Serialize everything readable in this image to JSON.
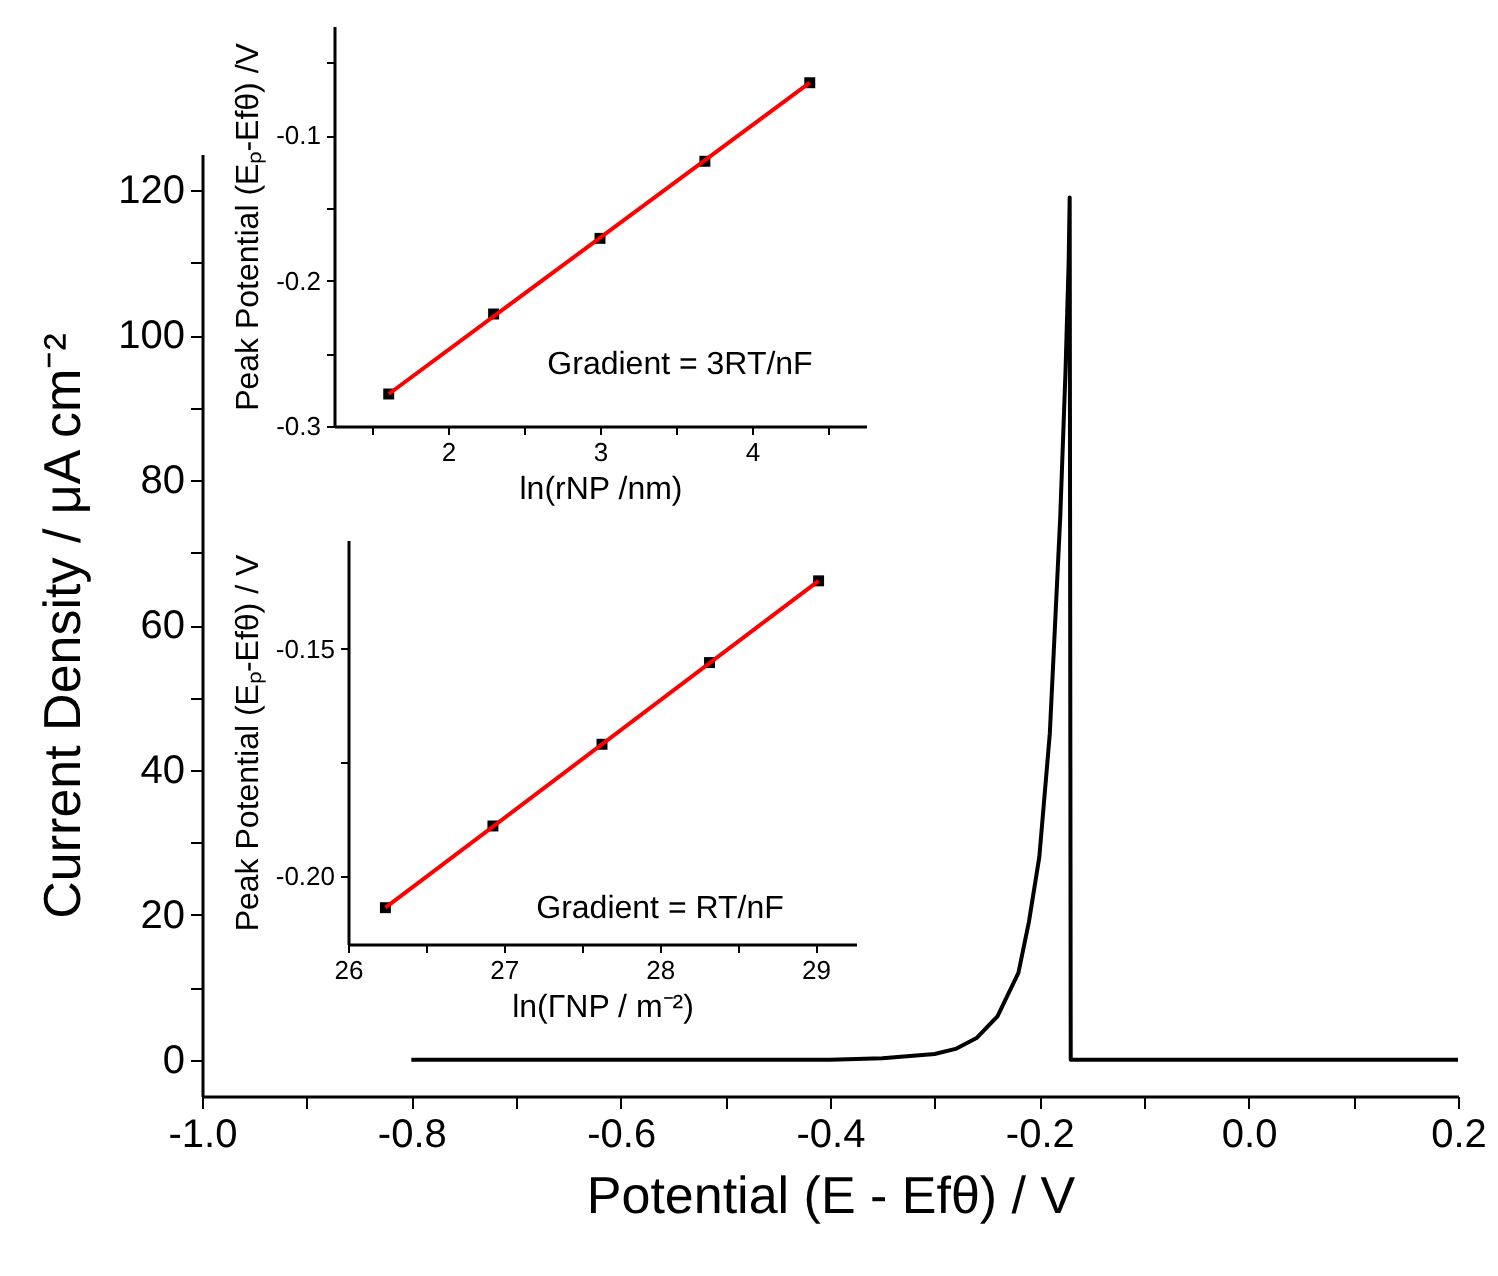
{
  "chart_data": [
    {
      "type": "line",
      "xlabel": "Potential (E - Efθ) / V",
      "ylabel": "Current Density / μA cm⁻²",
      "grid": false,
      "marker": "none",
      "xlim": [
        -1.0,
        0.2
      ],
      "ylim": [
        -5,
        125
      ],
      "xticks": [
        {
          "value": -1.0,
          "label": "-1.0"
        },
        {
          "value": -0.9,
          "label": null
        },
        {
          "value": -0.8,
          "label": "-0.8"
        },
        {
          "value": -0.7,
          "label": null
        },
        {
          "value": -0.6,
          "label": "-0.6"
        },
        {
          "value": -0.5,
          "label": null
        },
        {
          "value": -0.4,
          "label": "-0.4"
        },
        {
          "value": -0.3,
          "label": null
        },
        -0.2,
        {
          "value": -0.1,
          "label": null
        },
        {
          "value": 0,
          "label": "0.0"
        },
        {
          "value": 0.1,
          "label": null
        },
        0.2
      ],
      "yticks": [
        0,
        {
          "value": 10,
          "label": null
        },
        20,
        {
          "value": 30,
          "label": null
        },
        40,
        {
          "value": 50,
          "label": null
        },
        60,
        {
          "value": 70,
          "label": null
        },
        80,
        {
          "value": 90,
          "label": null
        },
        100,
        {
          "value": 110,
          "label": null
        },
        120
      ],
      "series": [
        {
          "color": "#000000",
          "x": [
            -0.8,
            -0.6,
            -0.4,
            -0.35,
            -0.3,
            -0.28,
            -0.26,
            -0.24,
            -0.22,
            -0.21,
            -0.2,
            -0.19,
            -0.18,
            -0.175,
            -0.172,
            -0.171,
            -0.17,
            0.2
          ],
          "values": [
            0,
            0,
            0,
            0.2,
            0.8,
            1.5,
            3,
            6,
            12,
            19,
            28,
            45,
            75,
            95,
            110,
            119,
            0,
            0
          ]
        }
      ]
    },
    {
      "type": "scatter",
      "xlabel": "ln(rNP /nm)",
      "ylabel": "Peak Potential (Eₚ-Efθ) /V",
      "grid": false,
      "annotations": [
        "Gradient = 3RT/nF"
      ],
      "xlim": [
        1.25,
        4.75
      ],
      "ylim": [
        -0.3,
        -0.025
      ],
      "xticks": [
        {
          "value": 1.5,
          "label": null
        },
        2,
        {
          "value": 2.5,
          "label": null
        },
        3,
        {
          "value": 3.5,
          "label": null
        },
        4,
        {
          "value": 4.5,
          "label": null
        }
      ],
      "yticks": [
        -0.3,
        {
          "value": -0.25,
          "label": null
        },
        -0.2,
        {
          "value": -0.15,
          "label": null
        },
        -0.1,
        {
          "value": -0.05,
          "label": null
        }
      ],
      "series": [
        {
          "type": "scatter",
          "marker": "square",
          "color": "#000000",
          "x": [
            1.61,
            2.3,
            3.0,
            3.69,
            4.38
          ],
          "values": [
            -0.278,
            -0.223,
            -0.171,
            -0.118,
            -0.064
          ]
        },
        {
          "type": "line",
          "color": "#ff0000",
          "x": [
            1.61,
            4.38
          ],
          "values": [
            -0.278,
            -0.064
          ]
        }
      ]
    },
    {
      "type": "scatter",
      "xlabel": "ln(ΓNP / m⁻²)",
      "ylabel": "Peak Potential (Eₚ-Efθ) / V",
      "grid": false,
      "annotations": [
        "Gradient = RT/nF"
      ],
      "xlim": [
        26,
        29.26
      ],
      "ylim": [
        -0.215,
        -0.126
      ],
      "xticks": [
        26,
        {
          "value": 26.5,
          "label": null
        },
        27,
        {
          "value": 27.5,
          "label": null
        },
        28,
        {
          "value": 28.5,
          "label": null
        },
        29
      ],
      "yticks": [
        {
          "value": -0.2,
          "label": "-0.20"
        },
        {
          "value": -0.175,
          "label": null
        },
        -0.15
      ],
      "series": [
        {
          "type": "scatter",
          "marker": "square",
          "color": "#000000",
          "x": [
            26.24,
            26.93,
            27.63,
            28.32,
            29.02
          ],
          "values": [
            -0.207,
            -0.189,
            -0.171,
            -0.153,
            -0.135
          ]
        },
        {
          "type": "line",
          "color": "#ff0000",
          "x": [
            26.24,
            29.02
          ],
          "values": [
            -0.207,
            -0.135
          ]
        }
      ]
    }
  ]
}
